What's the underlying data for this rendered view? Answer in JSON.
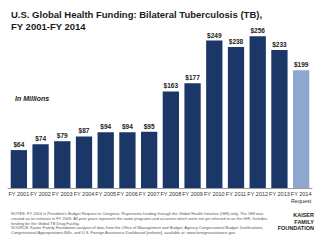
{
  "chart_data": {
    "type": "bar",
    "title": "U.S. Global Health Funding: Bilateral Tuberculosis (TB),\nFY 2001-FY 2014",
    "subtitle": "In Millions",
    "categories": [
      "FY 2001",
      "FY 2002",
      "FY 2003",
      "FY 2004",
      "FY 2005",
      "FY 2006",
      "FY 2007",
      "FY 2008",
      "FY 2009",
      "FY 2010",
      "FY 2011",
      "FY 2012",
      "FY 2013",
      "FY 2014\nRequest"
    ],
    "values": [
      64,
      74,
      79,
      87,
      94,
      94,
      95,
      163,
      177,
      249,
      238,
      256,
      233,
      199
    ],
    "value_labels": [
      "$64",
      "$74",
      "$79",
      "$87",
      "$94",
      "$94",
      "$95",
      "$163",
      "$177",
      "$249",
      "$238",
      "$256",
      "$233",
      "$199"
    ],
    "colors": [
      "#1b3768",
      "#1b3768",
      "#1b3768",
      "#1b3768",
      "#1b3768",
      "#1b3768",
      "#1b3768",
      "#1b3768",
      "#1b3768",
      "#1b3768",
      "#1b3768",
      "#1b3768",
      "#1b3768",
      "#8ea7cf"
    ],
    "ylim": [
      0,
      260
    ],
    "grid": false,
    "data_labels": true,
    "tick_labels": "x",
    "notes": "NOTES: FY 2014 is President's Budget Request to Congress. Represents funding through the Global Health Initiative (GHI) only. The GHI was created as an initiative in FY 2009. All prior years represent the same programs and accounts which were not yet referred to as the GHI. Includes funding for the Global TB Drug Facility.",
    "source": "SOURCE: Kaiser Family Foundation analysis of data from the Office of Management and Budget, Agency Congressional Budget Justifications, Congressional Appropriations Bills, and U.S. Foreign Assistance Dashboard [website], available at: www.foreignassistance.gov.",
    "logo": "KAISER\nFAMILY\nFOUNDATION"
  }
}
